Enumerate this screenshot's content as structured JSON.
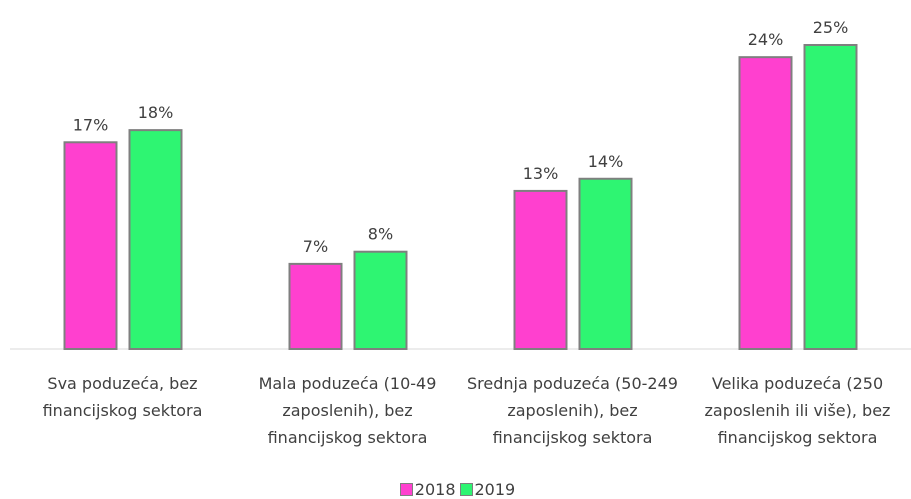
{
  "chart_data": {
    "type": "bar",
    "categories": [
      "Sva poduzeća, bez financijskog sektora",
      "Mala poduzeća (10-49 zaposlenih), bez financijskog sektora",
      "Srednja poduzeća (50-249 zaposlenih), bez financijskog sektora",
      "Velika poduzeća (250 zaposlenih ili više), bez financijskog sektora"
    ],
    "series": [
      {
        "name": "2018",
        "color": "#ff40cf",
        "values": [
          17,
          7,
          13,
          24
        ],
        "value_labels": [
          "17%",
          "7%",
          "13%",
          "24%"
        ]
      },
      {
        "name": "2019",
        "color": "#2ef572",
        "values": [
          18,
          8,
          14,
          25
        ],
        "value_labels": [
          "18%",
          "8%",
          "14%",
          "25%"
        ]
      }
    ],
    "legend": "bottom"
  }
}
